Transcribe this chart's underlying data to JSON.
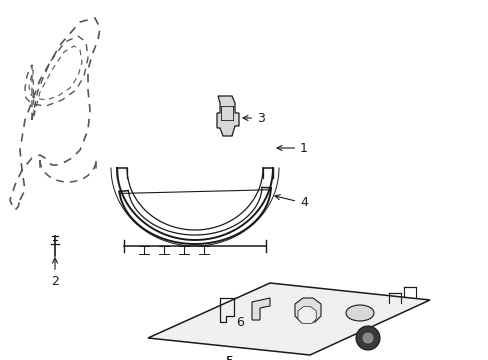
{
  "bg_color": "#ffffff",
  "line_color": "#1a1a1a",
  "dashed_color": "#555555",
  "label_color": "#000000",
  "figsize": [
    4.89,
    3.6
  ],
  "dpi": 100
}
